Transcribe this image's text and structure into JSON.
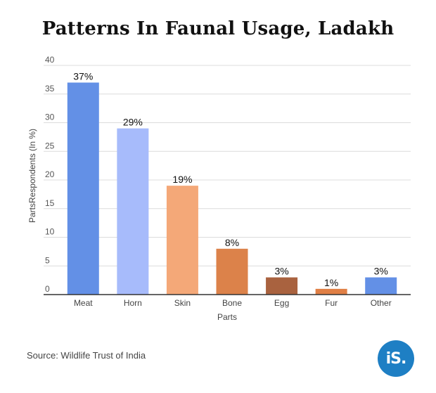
{
  "title": "Patterns In Faunal Usage, Ladakh",
  "source": "Source: Wildlife Trust of India",
  "logo_text": "iS.",
  "chart_data": {
    "type": "bar",
    "title": "Patterns In Faunal Usage, Ladakh",
    "xlabel": "Parts",
    "ylabel": "PartsRespondents (In %)",
    "ylim": [
      0,
      40
    ],
    "yticks": [
      0,
      5,
      10,
      15,
      20,
      25,
      30,
      35,
      40
    ],
    "grid": true,
    "categories": [
      "Meat",
      "Horn",
      "Skin",
      "Bone",
      "Egg",
      "Fur",
      "Other"
    ],
    "values": [
      37,
      29,
      19,
      8,
      3,
      1,
      3
    ],
    "data_labels": [
      "37%",
      "29%",
      "19%",
      "8%",
      "3%",
      "1%",
      "3%"
    ],
    "colors": [
      "#6390e6",
      "#a7bbfb",
      "#f4a878",
      "#dc824a",
      "#a9623f",
      "#e07f45",
      "#6390e6"
    ]
  }
}
